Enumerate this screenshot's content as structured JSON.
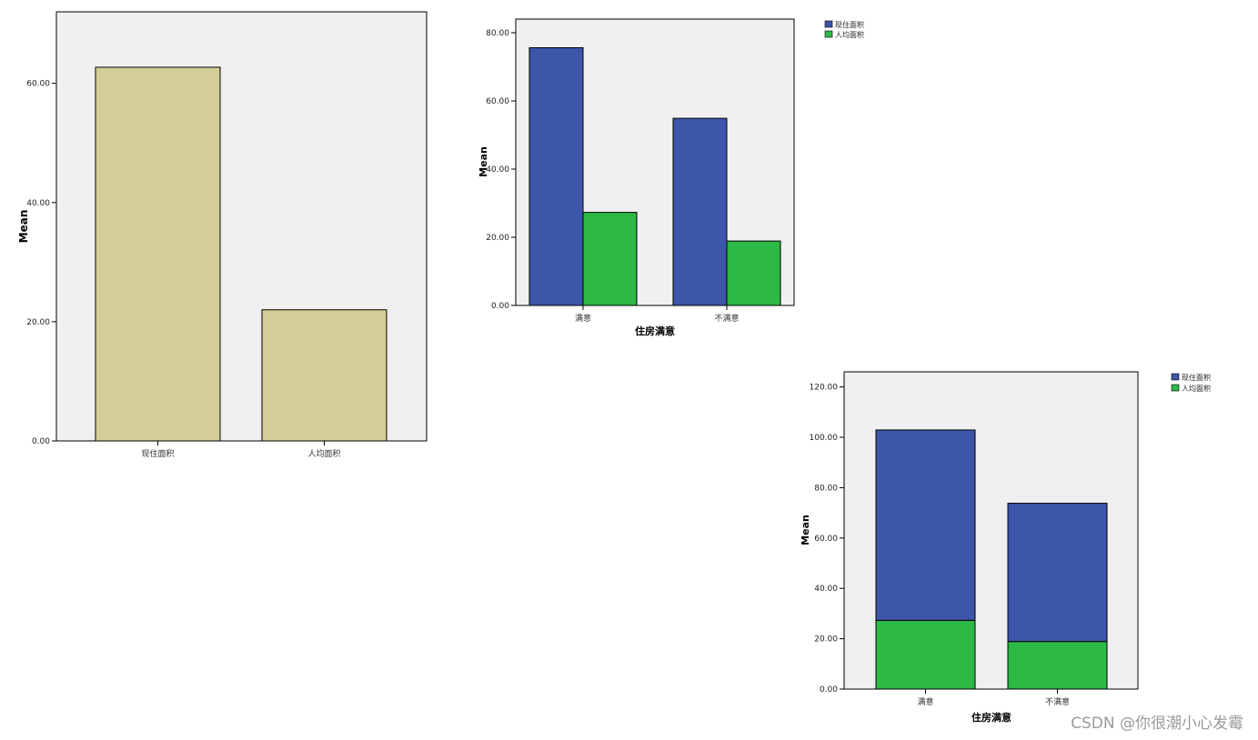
{
  "colors": {
    "plot_bg": "#f0f0f0",
    "bar_single": "#d3ce97",
    "series_current": "#3d56a9",
    "series_per_capita": "#2db945",
    "axis": "#000000"
  },
  "watermark": "CSDN @你很潮小心发霉",
  "chart_data": [
    {
      "type": "bar",
      "categories": [
        "现住面积",
        "人均面积"
      ],
      "values": [
        62.7,
        22.0
      ],
      "ylabel": "Mean",
      "xlabel": "",
      "ylim": [
        0,
        72
      ],
      "yticks": [
        "0.00",
        "20.00",
        "40.00",
        "60.00"
      ],
      "grid": false,
      "legend": "none"
    },
    {
      "type": "bar",
      "categories": [
        "满意",
        "不满意"
      ],
      "series": [
        {
          "name": "现住面积",
          "values": [
            75.6,
            54.9
          ]
        },
        {
          "name": "人均面积",
          "values": [
            27.3,
            18.9
          ]
        }
      ],
      "ylabel": "Mean",
      "xlabel": "住房满意",
      "ylim": [
        0,
        84
      ],
      "yticks": [
        "0.00",
        "20.00",
        "40.00",
        "60.00",
        "80.00"
      ],
      "grid": false,
      "legend": "top-right (outside)"
    },
    {
      "type": "bar",
      "stacked": true,
      "categories": [
        "满意",
        "不满意"
      ],
      "series": [
        {
          "name": "现住面积",
          "values": [
            75.6,
            54.9
          ]
        },
        {
          "name": "人均面积",
          "values": [
            27.3,
            18.9
          ]
        }
      ],
      "ylabel": "Mean",
      "xlabel": "住房满意",
      "ylim": [
        0,
        126
      ],
      "yticks": [
        "0.00",
        "20.00",
        "40.00",
        "60.00",
        "80.00",
        "100.00",
        "120.00"
      ],
      "grid": false,
      "legend": "top-right (outside)"
    }
  ]
}
